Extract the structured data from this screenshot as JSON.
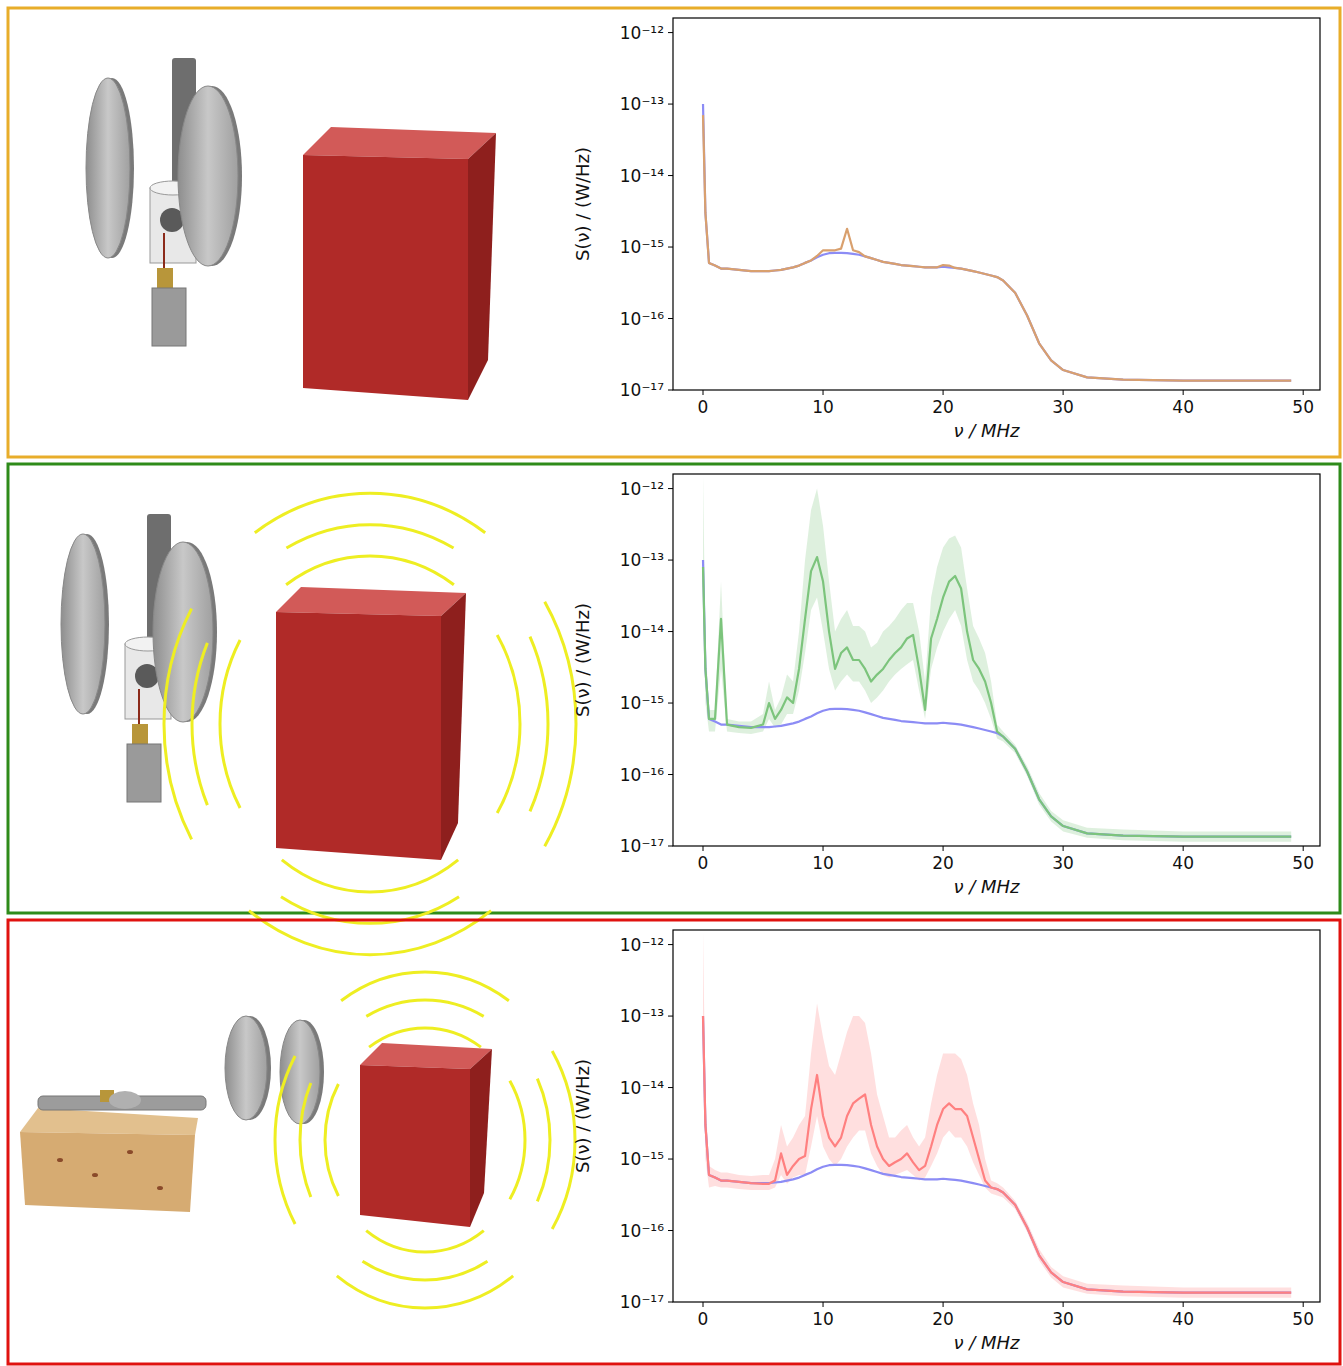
{
  "chart_data": [
    {
      "type": "line",
      "x_label": "ν / MHz",
      "y_label": "S(ν) / (W/Hz)",
      "log": "y",
      "xlim": [
        -2.5,
        51.4
      ],
      "ylim": [
        1e-17,
        1.6e-12
      ],
      "xticks": [
        0,
        10,
        20,
        30,
        40,
        50
      ],
      "yticks": [
        {
          "value": 1e-17,
          "label": "10⁻¹⁷"
        },
        {
          "value": 1e-16,
          "label": "10⁻¹⁶"
        },
        {
          "value": 1e-15,
          "label": "10⁻¹⁵"
        },
        {
          "value": 1e-14,
          "label": "10⁻¹⁴"
        },
        {
          "value": 1e-13,
          "label": "10⁻¹³"
        },
        {
          "value": 1e-12,
          "label": "10⁻¹²"
        }
      ],
      "x": [
        0,
        0.2,
        0.5,
        1,
        1.5,
        2,
        3,
        4,
        5,
        5.5,
        6,
        6.5,
        7,
        7.5,
        8,
        8.5,
        9,
        9.5,
        10,
        10.5,
        11,
        11.5,
        12,
        12.5,
        13,
        13.5,
        14,
        14.5,
        15,
        15.5,
        16,
        16.5,
        17,
        17.5,
        18,
        18.5,
        19,
        19.5,
        20,
        20.5,
        21,
        21.5,
        22,
        22.5,
        23,
        23.5,
        24,
        24.5,
        25,
        26,
        27,
        28,
        29,
        30,
        32,
        35,
        40,
        45,
        49
      ],
      "series": [
        {
          "color": "#8c8cf5",
          "values": [
            1e-13,
            3e-15,
            6e-16,
            5.5e-16,
            5e-16,
            5e-16,
            4.8e-16,
            4.6e-16,
            4.6e-16,
            4.6e-16,
            4.7e-16,
            4.8e-16,
            5e-16,
            5.2e-16,
            5.5e-16,
            6e-16,
            6.5e-16,
            7.2e-16,
            7.8e-16,
            8.2e-16,
            8.3e-16,
            8.3e-16,
            8.2e-16,
            8e-16,
            7.8e-16,
            7.4e-16,
            7e-16,
            6.6e-16,
            6.2e-16,
            6e-16,
            5.8e-16,
            5.6e-16,
            5.5e-16,
            5.4e-16,
            5.3e-16,
            5.2e-16,
            5.2e-16,
            5.2e-16,
            5.3e-16,
            5.2e-16,
            5.1e-16,
            5e-16,
            4.8e-16,
            4.6e-16,
            4.4e-16,
            4.2e-16,
            4e-16,
            3.8e-16,
            3.4e-16,
            2.3e-16,
            1.1e-16,
            4.5e-17,
            2.6e-17,
            1.9e-17,
            1.5e-17,
            1.4e-17,
            1.35e-17,
            1.35e-17,
            1.35e-17
          ]
        },
        {
          "color": "#d9a06e",
          "values": [
            7e-14,
            3e-15,
            6e-16,
            5.5e-16,
            5e-16,
            5e-16,
            4.8e-16,
            4.6e-16,
            4.6e-16,
            4.6e-16,
            4.7e-16,
            4.8e-16,
            5e-16,
            5.2e-16,
            5.5e-16,
            6e-16,
            6.5e-16,
            7.5e-16,
            9e-16,
            9e-16,
            9e-16,
            9.5e-16,
            1.8e-15,
            9e-16,
            8.5e-16,
            7.4e-16,
            7e-16,
            6.6e-16,
            6.2e-16,
            6e-16,
            5.8e-16,
            5.6e-16,
            5.5e-16,
            5.4e-16,
            5.3e-16,
            5.2e-16,
            5.2e-16,
            5.2e-16,
            5.6e-16,
            5.5e-16,
            5.1e-16,
            5e-16,
            4.8e-16,
            4.6e-16,
            4.4e-16,
            4.2e-16,
            4e-16,
            3.8e-16,
            3.4e-16,
            2.3e-16,
            1.1e-16,
            4.5e-17,
            2.6e-17,
            1.9e-17,
            1.5e-17,
            1.4e-17,
            1.35e-17,
            1.35e-17,
            1.35e-17
          ]
        }
      ]
    },
    {
      "type": "line",
      "x_label": "ν / MHz",
      "y_label": "S(ν) / (W/Hz)",
      "log": "y",
      "xlim": [
        -2.5,
        51.4
      ],
      "ylim": [
        1e-17,
        1.6e-12
      ],
      "xticks": [
        0,
        10,
        20,
        30,
        40,
        50
      ],
      "yticks": [
        {
          "value": 1e-17,
          "label": "10⁻¹⁷"
        },
        {
          "value": 1e-16,
          "label": "10⁻¹⁶"
        },
        {
          "value": 1e-15,
          "label": "10⁻¹⁵"
        },
        {
          "value": 1e-14,
          "label": "10⁻¹⁴"
        },
        {
          "value": 1e-13,
          "label": "10⁻¹³"
        },
        {
          "value": 1e-12,
          "label": "10⁻¹²"
        }
      ],
      "x": [
        0,
        0.2,
        0.5,
        1,
        1.5,
        2,
        3,
        4,
        5,
        5.5,
        6,
        6.5,
        7,
        7.5,
        8,
        8.5,
        9,
        9.5,
        10,
        10.5,
        11,
        11.5,
        12,
        12.5,
        13,
        13.5,
        14,
        14.5,
        15,
        15.5,
        16,
        16.5,
        17,
        17.5,
        18,
        18.5,
        19,
        19.5,
        20,
        20.5,
        21,
        21.5,
        22,
        22.5,
        23,
        23.5,
        24,
        24.5,
        25,
        26,
        27,
        28,
        29,
        30,
        32,
        35,
        40,
        45,
        49
      ],
      "series": [
        {
          "color": "#8c8cf5",
          "values": [
            1e-13,
            3e-15,
            6e-16,
            5.5e-16,
            5e-16,
            5e-16,
            4.8e-16,
            4.6e-16,
            4.6e-16,
            4.6e-16,
            4.7e-16,
            4.8e-16,
            5e-16,
            5.2e-16,
            5.5e-16,
            6e-16,
            6.5e-16,
            7.2e-16,
            7.8e-16,
            8.2e-16,
            8.3e-16,
            8.3e-16,
            8.2e-16,
            8e-16,
            7.8e-16,
            7.4e-16,
            7e-16,
            6.6e-16,
            6.2e-16,
            6e-16,
            5.8e-16,
            5.6e-16,
            5.5e-16,
            5.4e-16,
            5.3e-16,
            5.2e-16,
            5.2e-16,
            5.2e-16,
            5.3e-16,
            5.2e-16,
            5.1e-16,
            5e-16,
            4.8e-16,
            4.6e-16,
            4.4e-16,
            4.2e-16,
            4e-16,
            3.8e-16,
            3.4e-16,
            2.3e-16,
            1.1e-16,
            4.5e-17,
            2.6e-17,
            1.9e-17,
            1.5e-17,
            1.4e-17,
            1.35e-17,
            1.35e-17,
            1.35e-17
          ]
        },
        {
          "color": "#7cc47c",
          "values": [
            8e-14,
            3e-15,
            6e-16,
            6e-16,
            1.5e-14,
            5e-16,
            4.6e-16,
            4.5e-16,
            5e-16,
            1e-15,
            6e-16,
            8e-16,
            1.2e-15,
            1e-15,
            3e-15,
            1.5e-14,
            7e-14,
            1.1e-13,
            5e-14,
            1e-14,
            3e-15,
            5e-15,
            6e-15,
            4e-15,
            4e-15,
            3e-15,
            2e-15,
            2.5e-15,
            3e-15,
            4e-15,
            5e-15,
            6e-15,
            8e-15,
            9e-15,
            3e-15,
            8e-16,
            8e-15,
            1.5e-14,
            3e-14,
            5e-14,
            6e-14,
            4e-14,
            1e-14,
            4e-15,
            3e-15,
            2e-15,
            1e-15,
            4e-16,
            3.4e-16,
            2.3e-16,
            1.1e-16,
            4.5e-17,
            2.6e-17,
            1.9e-17,
            1.5e-17,
            1.4e-17,
            1.35e-17,
            1.35e-17,
            1.35e-17
          ],
          "lower": [
            3e-14,
            1e-15,
            4e-16,
            4e-16,
            3e-15,
            4e-16,
            3.8e-16,
            3.7e-16,
            4e-16,
            6e-16,
            4.5e-16,
            5e-16,
            7e-16,
            7e-16,
            1.5e-15,
            5e-15,
            2e-14,
            3e-14,
            1e-14,
            3e-15,
            1.5e-15,
            2e-15,
            2.5e-15,
            2e-15,
            2e-15,
            1.5e-15,
            1e-15,
            1.2e-15,
            1.5e-15,
            2e-15,
            2.5e-15,
            3e-15,
            3.5e-15,
            4e-15,
            1.5e-15,
            6e-16,
            3e-15,
            6e-15,
            1e-14,
            1.5e-14,
            2e-14,
            1.2e-14,
            4e-15,
            2e-15,
            1.5e-15,
            1e-15,
            6e-16,
            3.2e-16,
            2.9e-16,
            2e-16,
            9.5e-17,
            3.8e-17,
            2.2e-17,
            1.6e-17,
            1.3e-17,
            1.2e-17,
            1.15e-17,
            1.15e-17,
            1.15e-17
          ],
          "upper": [
            1.5e-12,
            8e-15,
            8e-16,
            8e-16,
            5e-14,
            6e-16,
            5.5e-16,
            5.5e-16,
            7e-16,
            2e-15,
            8e-16,
            1.2e-15,
            2.5e-15,
            2e-15,
            1e-14,
            1e-13,
            5e-13,
            1e-12,
            3e-13,
            5e-14,
            1e-14,
            1.5e-14,
            2e-14,
            1.2e-14,
            1.2e-14,
            1e-14,
            6e-15,
            7e-15,
            1e-14,
            1.2e-14,
            1.5e-14,
            2e-14,
            2.5e-14,
            2.5e-14,
            1e-14,
            2e-15,
            3e-14,
            8e-14,
            1.5e-13,
            2e-13,
            2.2e-13,
            1.5e-13,
            4e-14,
            1.2e-14,
            8e-15,
            5e-15,
            2e-15,
            5e-16,
            4e-16,
            2.6e-16,
            1.3e-16,
            5.5e-17,
            3.1e-17,
            2.3e-17,
            1.8e-17,
            1.7e-17,
            1.6e-17,
            1.6e-17,
            1.6e-17
          ]
        }
      ]
    },
    {
      "type": "line",
      "x_label": "ν / MHz",
      "y_label": "S(ν) / (W/Hz)",
      "log": "y",
      "xlim": [
        -2.5,
        51.4
      ],
      "ylim": [
        1e-17,
        1.6e-12
      ],
      "xticks": [
        0,
        10,
        20,
        30,
        40,
        50
      ],
      "yticks": [
        {
          "value": 1e-17,
          "label": "10⁻¹⁷"
        },
        {
          "value": 1e-16,
          "label": "10⁻¹⁶"
        },
        {
          "value": 1e-15,
          "label": "10⁻¹⁵"
        },
        {
          "value": 1e-14,
          "label": "10⁻¹⁴"
        },
        {
          "value": 1e-13,
          "label": "10⁻¹³"
        },
        {
          "value": 1e-12,
          "label": "10⁻¹²"
        }
      ],
      "x": [
        0,
        0.2,
        0.5,
        1,
        1.5,
        2,
        3,
        4,
        5,
        5.5,
        6,
        6.5,
        7,
        7.5,
        8,
        8.5,
        9,
        9.5,
        10,
        10.5,
        11,
        11.5,
        12,
        12.5,
        13,
        13.5,
        14,
        14.5,
        15,
        15.5,
        16,
        16.5,
        17,
        17.5,
        18,
        18.5,
        19,
        19.5,
        20,
        20.5,
        21,
        21.5,
        22,
        22.5,
        23,
        23.5,
        24,
        24.5,
        25,
        26,
        27,
        28,
        29,
        30,
        32,
        35,
        40,
        45,
        49
      ],
      "series": [
        {
          "color": "#8c8cf5",
          "values": [
            1e-13,
            3e-15,
            6e-16,
            5.5e-16,
            5e-16,
            5e-16,
            4.8e-16,
            4.6e-16,
            4.6e-16,
            4.6e-16,
            4.7e-16,
            4.8e-16,
            5e-16,
            5.2e-16,
            5.5e-16,
            6e-16,
            6.5e-16,
            7.2e-16,
            7.8e-16,
            8.2e-16,
            8.3e-16,
            8.3e-16,
            8.2e-16,
            8e-16,
            7.8e-16,
            7.4e-16,
            7e-16,
            6.6e-16,
            6.2e-16,
            6e-16,
            5.8e-16,
            5.6e-16,
            5.5e-16,
            5.4e-16,
            5.3e-16,
            5.2e-16,
            5.2e-16,
            5.2e-16,
            5.3e-16,
            5.2e-16,
            5.1e-16,
            5e-16,
            4.8e-16,
            4.6e-16,
            4.4e-16,
            4.2e-16,
            4e-16,
            3.8e-16,
            3.4e-16,
            2.3e-16,
            1.1e-16,
            4.5e-17,
            2.6e-17,
            1.9e-17,
            1.5e-17,
            1.4e-17,
            1.35e-17,
            1.35e-17,
            1.35e-17
          ]
        },
        {
          "color": "#ff8080",
          "values": [
            1e-13,
            3e-15,
            6e-16,
            5.5e-16,
            5e-16,
            5e-16,
            4.8e-16,
            4.6e-16,
            4.5e-16,
            4.5e-16,
            5e-16,
            1.2e-15,
            6e-16,
            8e-16,
            1e-15,
            1.1e-15,
            5e-15,
            1.5e-14,
            4e-15,
            2e-15,
            1.5e-15,
            2e-15,
            4e-15,
            6e-15,
            7e-15,
            8e-15,
            3e-15,
            1.5e-15,
            1e-15,
            8e-16,
            9e-16,
            1e-15,
            1.2e-15,
            9e-16,
            7e-16,
            8e-16,
            1.5e-15,
            3e-15,
            5e-15,
            6e-15,
            5e-15,
            5e-15,
            4e-15,
            2e-15,
            1e-15,
            5e-16,
            4e-16,
            3.8e-16,
            3.4e-16,
            2.3e-16,
            1.1e-16,
            4.5e-17,
            2.6e-17,
            1.9e-17,
            1.5e-17,
            1.4e-17,
            1.35e-17,
            1.35e-17,
            1.35e-17
          ],
          "lower": [
            3e-14,
            1e-15,
            4e-16,
            4.2e-16,
            4e-16,
            4e-16,
            3.8e-16,
            3.7e-16,
            3.7e-16,
            3.7e-16,
            4e-16,
            6e-16,
            4.5e-16,
            5.5e-16,
            6e-16,
            6e-16,
            1.5e-15,
            4e-15,
            1.5e-15,
            1e-15,
            8e-16,
            1e-15,
            1.5e-15,
            2e-15,
            2.5e-15,
            2.5e-15,
            1.2e-15,
            8e-16,
            6e-16,
            5.5e-16,
            6e-16,
            6.5e-16,
            7e-16,
            6e-16,
            5e-16,
            5.5e-16,
            8e-16,
            1.2e-15,
            2e-15,
            2.5e-15,
            2e-15,
            2e-15,
            1.5e-15,
            9e-16,
            6e-16,
            4e-16,
            3.3e-16,
            3.1e-16,
            2.9e-16,
            2e-16,
            9.5e-17,
            3.8e-17,
            2.2e-17,
            1.6e-17,
            1.3e-17,
            1.2e-17,
            1.15e-17,
            1.15e-17,
            1.15e-17
          ],
          "upper": [
            1.5e-12,
            8e-15,
            8e-16,
            7e-16,
            6.5e-16,
            6.5e-16,
            6e-16,
            5.8e-16,
            6e-16,
            6e-16,
            1e-15,
            3e-15,
            1.5e-15,
            2e-15,
            3e-15,
            4e-15,
            3e-14,
            1.5e-13,
            5e-14,
            2e-14,
            1.5e-14,
            3e-14,
            6e-14,
            1e-13,
            1e-13,
            8e-14,
            3e-14,
            8e-15,
            4e-15,
            2e-15,
            2e-15,
            2.5e-15,
            3e-15,
            2e-15,
            1.5e-15,
            2e-15,
            6e-15,
            1.5e-14,
            3e-14,
            3e-14,
            3e-14,
            2.5e-14,
            1.5e-14,
            6e-15,
            3e-15,
            1e-15,
            5e-16,
            4.6e-16,
            4e-16,
            2.6e-16,
            1.3e-16,
            5.5e-17,
            3.1e-17,
            2.3e-17,
            1.8e-17,
            1.7e-17,
            1.6e-17,
            1.6e-17,
            1.6e-17
          ]
        }
      ]
    }
  ]
}
